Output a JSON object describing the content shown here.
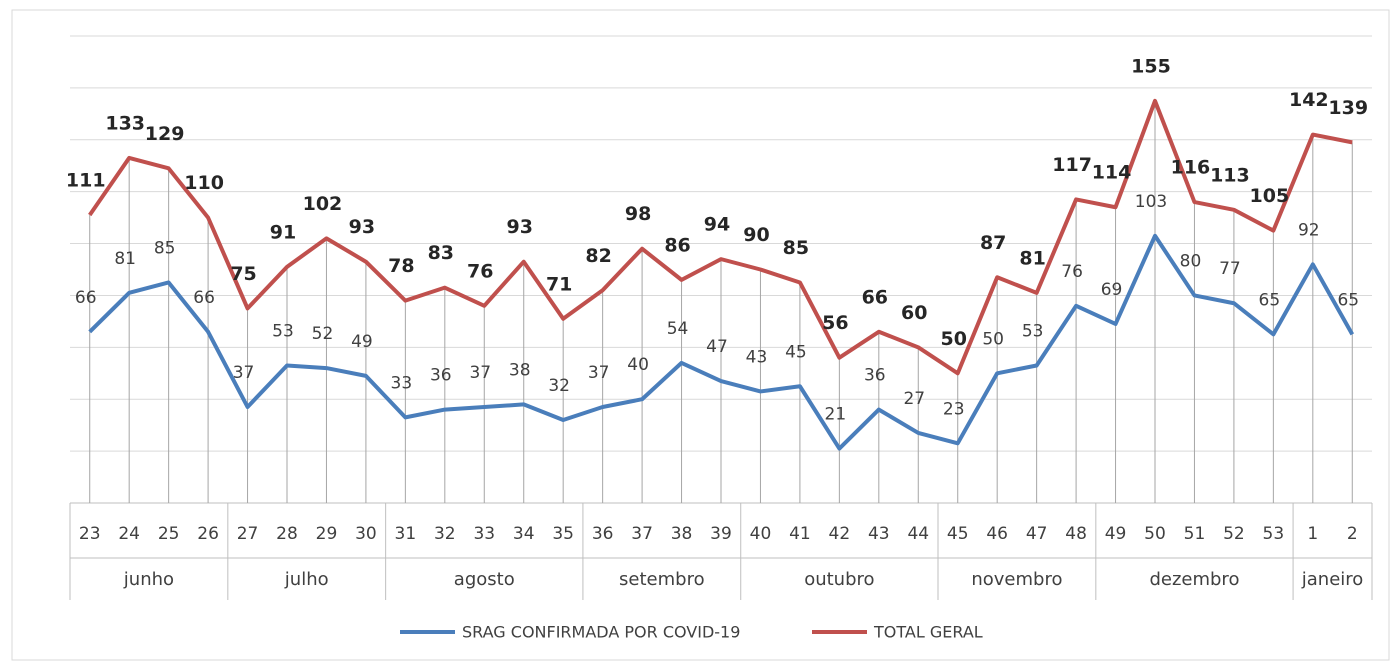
{
  "chart_data": {
    "type": "line",
    "groups": [
      {
        "label": "junho",
        "categories": [
          "23",
          "24",
          "25",
          "26"
        ]
      },
      {
        "label": "julho",
        "categories": [
          "27",
          "28",
          "29",
          "30"
        ]
      },
      {
        "label": "agosto",
        "categories": [
          "31",
          "32",
          "33",
          "34",
          "35"
        ]
      },
      {
        "label": "setembro",
        "categories": [
          "36",
          "37",
          "38",
          "39"
        ]
      },
      {
        "label": "outubro",
        "categories": [
          "40",
          "41",
          "42",
          "43",
          "44"
        ]
      },
      {
        "label": "novembro",
        "categories": [
          "45",
          "46",
          "47",
          "48"
        ]
      },
      {
        "label": "dezembro",
        "categories": [
          "49",
          "50",
          "51",
          "52",
          "53"
        ]
      },
      {
        "label": "janeiro",
        "categories": [
          "1",
          "2"
        ]
      }
    ],
    "series": [
      {
        "name": "SRAG CONFIRMADA POR COVID-19",
        "color": "#4a7ebb",
        "values": [
          66,
          81,
          85,
          66,
          37,
          53,
          52,
          49,
          33,
          36,
          37,
          38,
          32,
          37,
          40,
          54,
          47,
          43,
          45,
          21,
          36,
          27,
          23,
          50,
          53,
          76,
          69,
          103,
          80,
          77,
          65,
          92,
          65
        ]
      },
      {
        "name": "TOTAL GERAL",
        "color": "#c0504d",
        "values": [
          111,
          133,
          129,
          110,
          75,
          91,
          102,
          93,
          78,
          83,
          76,
          93,
          71,
          82,
          98,
          86,
          94,
          90,
          85,
          56,
          66,
          60,
          50,
          87,
          81,
          117,
          114,
          155,
          116,
          113,
          105,
          142,
          139
        ]
      }
    ],
    "ylim": [
      0,
      180
    ],
    "yticks": [
      0,
      20,
      40,
      60,
      80,
      100,
      120,
      140,
      160,
      180
    ],
    "grid": true
  }
}
